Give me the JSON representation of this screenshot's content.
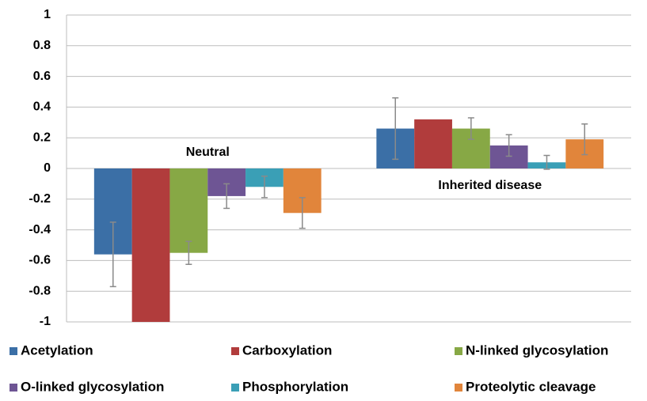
{
  "chart_data": {
    "type": "bar",
    "categories": [
      "Neutral",
      "Inherited disease"
    ],
    "series": [
      {
        "name": "Acetylation",
        "color": "#3b6fa6",
        "values": [
          -0.56,
          0.26
        ],
        "errors": [
          0.21,
          0.2
        ]
      },
      {
        "name": "Carboxylation",
        "color": "#b13c3c",
        "values": [
          -1.0,
          0.32
        ],
        "errors": [
          null,
          null
        ]
      },
      {
        "name": "N-linked glycosylation",
        "color": "#87a845",
        "values": [
          -0.55,
          0.26
        ],
        "errors": [
          0.075,
          0.07
        ]
      },
      {
        "name": "O-linked glycosylation",
        "color": "#6e5594",
        "values": [
          -0.18,
          0.15
        ],
        "errors": [
          0.08,
          0.07
        ]
      },
      {
        "name": "Phosphorylation",
        "color": "#3a9fb6",
        "values": [
          -0.12,
          0.04
        ],
        "errors": [
          0.07,
          0.045
        ]
      },
      {
        "name": "Proteolytic cleavage",
        "color": "#e1853b",
        "values": [
          -0.29,
          0.19
        ],
        "errors": [
          0.1,
          0.1
        ]
      }
    ],
    "ylim": [
      -1,
      1
    ],
    "yticks": [
      -1,
      -0.8,
      -0.6,
      -0.4,
      -0.2,
      0,
      0.2,
      0.4,
      0.6,
      0.8,
      1
    ],
    "grid": true,
    "legend": "bottom"
  }
}
